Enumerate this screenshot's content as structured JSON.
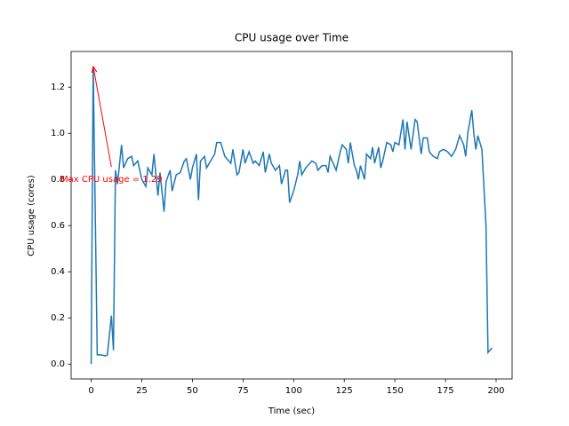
{
  "chart_data": {
    "type": "line",
    "title": "CPU usage over Time",
    "x_label": "Time (sec)",
    "y_label": "CPU usage (cores)",
    "xlim": [
      -9.9,
      207.9
    ],
    "ylim": [
      -0.0645,
      1.3545
    ],
    "xticks": [
      0,
      25,
      50,
      75,
      100,
      125,
      150,
      175,
      200
    ],
    "yticks": [
      {
        "value": 0,
        "label": "0.0"
      },
      0.2,
      0.4,
      0.6,
      0.8,
      {
        "value": 1,
        "label": "1.0"
      },
      1.2
    ],
    "grid": false,
    "x": [
      0,
      1,
      3,
      5,
      7,
      8,
      10,
      11,
      12,
      13,
      15,
      16,
      18,
      20,
      21,
      23,
      25,
      27,
      28,
      30,
      31,
      33,
      34,
      36,
      37,
      39,
      40,
      42,
      44,
      46,
      47,
      49,
      50,
      52,
      53,
      54,
      56,
      57,
      59,
      61,
      62,
      64,
      66,
      68,
      69,
      70,
      72,
      73,
      75,
      76,
      78,
      80,
      81,
      83,
      85,
      86,
      88,
      89,
      91,
      93,
      94,
      96,
      97,
      98,
      100,
      102,
      103,
      104,
      106,
      108,
      109,
      111,
      112,
      114,
      116,
      117,
      118,
      120,
      121,
      123,
      124,
      126,
      127,
      128,
      130,
      131,
      132,
      133,
      135,
      136,
      138,
      139,
      140,
      142,
      143,
      144,
      146,
      148,
      149,
      150,
      152,
      154,
      155,
      156,
      158,
      160,
      161,
      163,
      164,
      166,
      167,
      169,
      171,
      172,
      174,
      176,
      178,
      180,
      182,
      184,
      185,
      186,
      188,
      189,
      190,
      191,
      193,
      195,
      196,
      198
    ],
    "series": [
      {
        "name": "CPU usage",
        "color": "#1f77b4",
        "values": [
          0,
          1.29,
          0.04,
          0.04,
          0.035,
          0.04,
          0.21,
          0.06,
          0.84,
          0.78,
          0.95,
          0.85,
          0.89,
          0.9,
          0.86,
          0.88,
          0.8,
          0.77,
          0.85,
          0.82,
          0.91,
          0.73,
          0.83,
          0.66,
          0.79,
          0.84,
          0.75,
          0.82,
          0.83,
          0.88,
          0.89,
          0.8,
          0.85,
          0.91,
          0.71,
          0.88,
          0.9,
          0.85,
          0.88,
          0.91,
          0.96,
          0.96,
          0.9,
          0.88,
          0.87,
          0.93,
          0.82,
          0.83,
          0.93,
          0.87,
          0.92,
          0.87,
          0.88,
          0.86,
          0.92,
          0.83,
          0.91,
          0.87,
          0.84,
          0.86,
          0.78,
          0.84,
          0.84,
          0.7,
          0.75,
          0.82,
          0.88,
          0.82,
          0.85,
          0.87,
          0.88,
          0.87,
          0.84,
          0.86,
          0.86,
          0.83,
          0.9,
          0.86,
          0.84,
          0.92,
          0.95,
          0.93,
          0.87,
          0.96,
          0.86,
          0.84,
          0.8,
          0.86,
          0.8,
          0.91,
          0.89,
          0.94,
          0.87,
          0.94,
          0.85,
          0.88,
          0.96,
          0.95,
          0.92,
          0.96,
          0.95,
          1.06,
          0.93,
          1.05,
          0.93,
          1.06,
          1.05,
          0.91,
          0.98,
          0.98,
          0.92,
          0.9,
          0.89,
          0.92,
          0.93,
          0.92,
          0.9,
          0.93,
          0.99,
          0.95,
          0.9,
          1.0,
          1.1,
          1.0,
          0.93,
          0.99,
          0.93,
          0.6,
          0.05,
          0.07
        ]
      }
    ],
    "annotation": {
      "text": "Max CPU usage = 1.29",
      "xy": [
        1,
        1.29
      ],
      "xytext": [
        10,
        0.8
      ],
      "color": "red"
    }
  }
}
